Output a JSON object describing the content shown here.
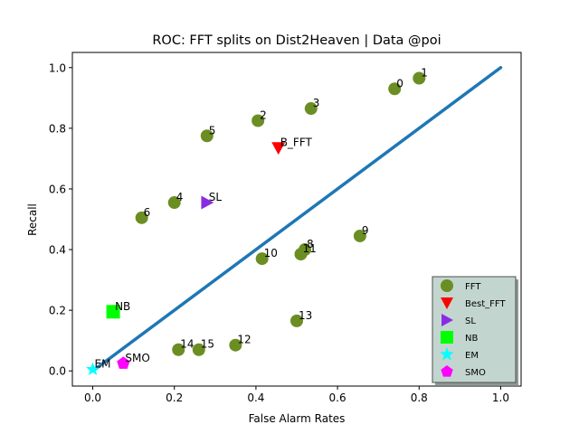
{
  "chart_data": {
    "type": "scatter",
    "title": "ROC: FFT splits on Dist2Heaven  |  Data @poi",
    "xlabel": "False Alarm Rates",
    "ylabel": "Recall",
    "xlim": [
      -0.05,
      1.05
    ],
    "ylim": [
      -0.05,
      1.05
    ],
    "xticks": [
      0.0,
      0.2,
      0.4,
      0.6,
      0.8,
      1.0
    ],
    "yticks": [
      0.0,
      0.2,
      0.4,
      0.6,
      0.8,
      1.0
    ],
    "xtick_labels": [
      "0.0",
      "0.2",
      "0.4",
      "0.6",
      "0.8",
      "1.0"
    ],
    "ytick_labels": [
      "0.0",
      "0.2",
      "0.4",
      "0.6",
      "0.8",
      "1.0"
    ],
    "grid": false,
    "legend_position": "lower-right",
    "diagonal": {
      "x": [
        0,
        1
      ],
      "y": [
        0,
        1
      ],
      "color": "#1f77b4"
    },
    "series": [
      {
        "name": "FFT",
        "marker": "circle",
        "color": "#6b8e23",
        "points": [
          {
            "label": "0",
            "x": 0.74,
            "y": 0.93
          },
          {
            "label": "1",
            "x": 0.8,
            "y": 0.965
          },
          {
            "label": "2",
            "x": 0.405,
            "y": 0.825
          },
          {
            "label": "3",
            "x": 0.535,
            "y": 0.865
          },
          {
            "label": "4",
            "x": 0.2,
            "y": 0.555
          },
          {
            "label": "5",
            "x": 0.28,
            "y": 0.775
          },
          {
            "label": "6",
            "x": 0.12,
            "y": 0.505
          },
          {
            "label": "8",
            "x": 0.52,
            "y": 0.4
          },
          {
            "label": "9",
            "x": 0.655,
            "y": 0.445
          },
          {
            "label": "10",
            "x": 0.415,
            "y": 0.37
          },
          {
            "label": "11",
            "x": 0.51,
            "y": 0.385
          },
          {
            "label": "12",
            "x": 0.35,
            "y": 0.085
          },
          {
            "label": "13",
            "x": 0.5,
            "y": 0.165
          },
          {
            "label": "14",
            "x": 0.21,
            "y": 0.07
          },
          {
            "label": "15",
            "x": 0.26,
            "y": 0.07
          }
        ]
      },
      {
        "name": "Best_FFT",
        "marker": "triangle-down",
        "color": "#ff0000",
        "points": [
          {
            "label": "B_FFT",
            "x": 0.455,
            "y": 0.735
          }
        ]
      },
      {
        "name": "SL",
        "marker": "triangle-right",
        "color": "#8a2be2",
        "points": [
          {
            "label": "SL",
            "x": 0.28,
            "y": 0.555
          }
        ]
      },
      {
        "name": "NB",
        "marker": "square",
        "color": "#00ff00",
        "points": [
          {
            "label": "NB",
            "x": 0.05,
            "y": 0.195
          }
        ]
      },
      {
        "name": "EM",
        "marker": "star",
        "color": "#00ffff",
        "points": [
          {
            "label": "EM",
            "x": 0.0,
            "y": 0.005
          }
        ]
      },
      {
        "name": "SMO",
        "marker": "pentagon",
        "color": "#ff00ff",
        "points": [
          {
            "label": "SMO",
            "x": 0.075,
            "y": 0.025
          }
        ]
      }
    ]
  }
}
